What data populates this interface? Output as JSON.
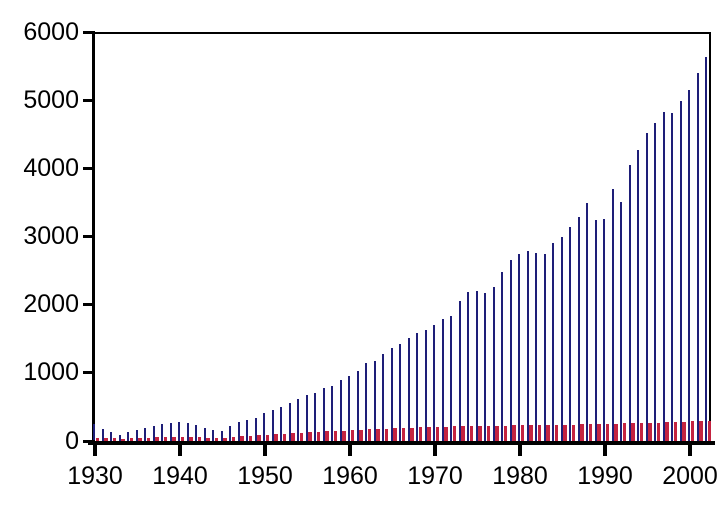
{
  "colors": {
    "background": "#ffffff",
    "axis": "#000000",
    "bar_blue": "#1e1e78",
    "bar_red": "#c42340"
  },
  "chart_data": {
    "type": "bar",
    "title": "",
    "xlabel": "",
    "ylabel": "",
    "grid": false,
    "legend": false,
    "ylim": [
      0,
      6000
    ],
    "xlim": [
      1929,
      2003
    ],
    "y_ticks": [
      "0",
      "1000",
      "2000",
      "3000",
      "4000",
      "5000",
      "6000"
    ],
    "x_ticks": [
      "1930",
      "1940",
      "1950",
      "1960",
      "1970",
      "1980",
      "1990",
      "2000"
    ],
    "x": [
      1930,
      1931,
      1932,
      1933,
      1934,
      1935,
      1936,
      1937,
      1938,
      1939,
      1940,
      1941,
      1942,
      1943,
      1944,
      1945,
      1946,
      1947,
      1948,
      1949,
      1950,
      1951,
      1952,
      1953,
      1954,
      1955,
      1956,
      1957,
      1958,
      1959,
      1960,
      1961,
      1962,
      1963,
      1964,
      1965,
      1966,
      1967,
      1968,
      1969,
      1970,
      1971,
      1972,
      1973,
      1974,
      1975,
      1976,
      1977,
      1978,
      1979,
      1980,
      1981,
      1982,
      1983,
      1984,
      1985,
      1986,
      1987,
      1988,
      1989,
      1990,
      1991,
      1992,
      1993,
      1994,
      1995,
      1996,
      1997,
      1998,
      1999,
      2000,
      2001,
      2002
    ],
    "series": [
      {
        "name": "series_blue",
        "color": "#1e1e78",
        "values": [
          250,
          170,
          125,
          95,
          135,
          165,
          195,
          225,
          250,
          270,
          285,
          270,
          235,
          195,
          165,
          150,
          220,
          285,
          310,
          340,
          415,
          455,
          495,
          555,
          610,
          675,
          700,
          775,
          800,
          890,
          955,
          1020,
          1140,
          1175,
          1270,
          1370,
          1420,
          1510,
          1590,
          1630,
          1700,
          1785,
          1835,
          2055,
          2190,
          2200,
          2175,
          2265,
          2485,
          2655,
          2745,
          2780,
          2765,
          2750,
          2900,
          2990,
          3140,
          3290,
          3490,
          3240,
          3250,
          3690,
          3500,
          4050,
          4270,
          4515,
          4660,
          4830,
          4810,
          4990,
          5150,
          5400,
          5630
        ]
      },
      {
        "name": "series_red",
        "color": "#c42340",
        "values": [
          50,
          45,
          40,
          35,
          40,
          45,
          50,
          55,
          55,
          60,
          60,
          60,
          55,
          50,
          45,
          45,
          65,
          70,
          75,
          85,
          95,
          100,
          110,
          115,
          120,
          130,
          135,
          140,
          145,
          150,
          160,
          165,
          170,
          175,
          180,
          185,
          190,
          195,
          200,
          200,
          205,
          210,
          215,
          220,
          220,
          220,
          220,
          225,
          225,
          230,
          230,
          230,
          230,
          235,
          235,
          240,
          240,
          245,
          250,
          250,
          255,
          255,
          260,
          260,
          265,
          270,
          270,
          275,
          280,
          285,
          290,
          295,
          300
        ]
      }
    ]
  }
}
